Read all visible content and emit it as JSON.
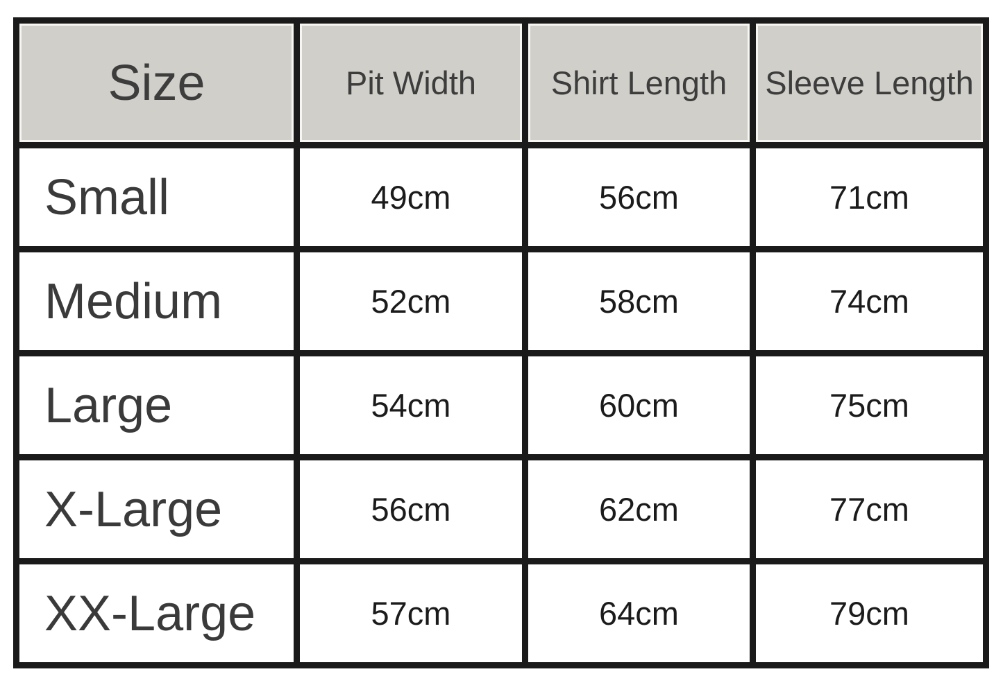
{
  "colors": {
    "header_bg": "#d0cfc9",
    "border": "#1a1a1a",
    "header_text": "#3d3d3d",
    "row_label_text": "#3a3a3a",
    "value_text": "#1b1b1b",
    "row_bg": "#ffffff"
  },
  "table": {
    "headers": [
      "Size",
      "Pit Width",
      "Shirt Length",
      "Sleeve Length"
    ],
    "rows": [
      [
        "Small",
        "49cm",
        "56cm",
        "71cm"
      ],
      [
        "Medium",
        "52cm",
        "58cm",
        "74cm"
      ],
      [
        "Large",
        "54cm",
        "60cm",
        "75cm"
      ],
      [
        "X-Large",
        "56cm",
        "62cm",
        "77cm"
      ],
      [
        "XX-Large",
        "57cm",
        "64cm",
        "79cm"
      ]
    ]
  },
  "chart_data": {
    "type": "table",
    "columns": [
      "Size",
      "Pit Width",
      "Shirt Length",
      "Sleeve Length"
    ],
    "rows": [
      [
        "Small",
        "49cm",
        "56cm",
        "71cm"
      ],
      [
        "Medium",
        "52cm",
        "58cm",
        "74cm"
      ],
      [
        "Large",
        "54cm",
        "60cm",
        "75cm"
      ],
      [
        "X-Large",
        "56cm",
        "62cm",
        "77cm"
      ],
      [
        "XX-Large",
        "57cm",
        "64cm",
        "79cm"
      ]
    ],
    "unit": "cm",
    "series": [
      {
        "name": "Pit Width",
        "values": [
          49,
          52,
          54,
          56,
          57
        ]
      },
      {
        "name": "Shirt Length",
        "values": [
          56,
          58,
          60,
          62,
          64
        ]
      },
      {
        "name": "Sleeve Length",
        "values": [
          71,
          74,
          75,
          77,
          79
        ]
      }
    ],
    "categories": [
      "Small",
      "Medium",
      "Large",
      "X-Large",
      "XX-Large"
    ]
  }
}
